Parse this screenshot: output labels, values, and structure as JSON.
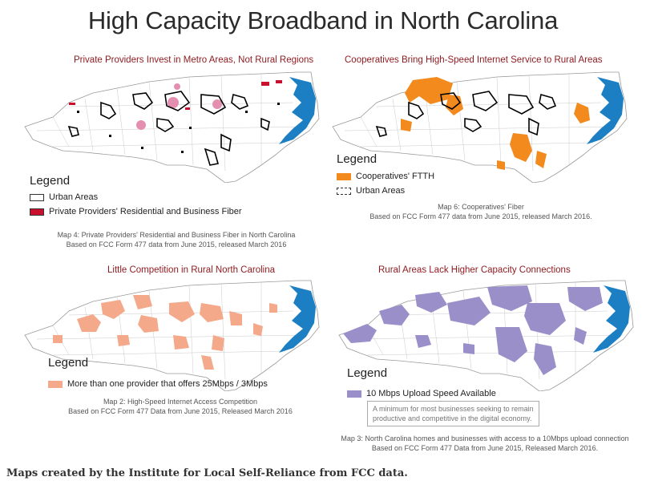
{
  "title": "High Capacity Broadband in North Carolina",
  "colors": {
    "coast": "#1d7fc3",
    "private_fiber": "#c8102e",
    "pink_area": "#e58fb0",
    "coop": "#f28a1e",
    "competition": "#f4a98a",
    "upload": "#9b8fc9",
    "title_red": "#8e1a1f"
  },
  "panels": {
    "p1": {
      "title": "Private Providers Invest in Metro Areas, Not Rural Regions",
      "legend_heading": "Legend",
      "legend_items": [
        "Urban Areas",
        "Private Providers' Residential and Business Fiber"
      ],
      "caption_line1": "Map 4: Private Providers' Residential and Business Fiber in North Carolina",
      "caption_line2": "Based on FCC Form 477 data from June 2015, released March 2016"
    },
    "p2": {
      "title": "Cooperatives Bring High-Speed Internet Service to Rural Areas",
      "legend_heading": "Legend",
      "legend_items": [
        "Cooperatives' FTTH",
        "Urban Areas"
      ],
      "caption_line1": "Map 6: Cooperatives' Fiber",
      "caption_line2": "Based on FCC Form 477 data from June 2015, released March 2016."
    },
    "p3": {
      "title": "Little Competition in Rural North Carolina",
      "legend_heading": "Legend",
      "legend_items": [
        "More than one provider that offers 25Mbps / 3Mbps"
      ],
      "caption_line1": "Map 2: High-Speed Internet Access Competition",
      "caption_line2": "Based on FCC Form 477 Data from June 2015, Released March 2016"
    },
    "p4": {
      "title": "Rural Areas Lack Higher Capacity Connections",
      "legend_heading": "Legend",
      "legend_items": [
        "10 Mbps Upload Speed Available"
      ],
      "note_line1": "A minimum for most businesses seeking to remain",
      "note_line2": "productive and competitive in the digital economy.",
      "caption_line1": "Map 3: North Carolina homes and businesses with access to a 10Mbps upload connection",
      "caption_line2": "Based on FCC Form 477 Data from June 2015, Released March 2016."
    }
  },
  "footer": "Maps created by the Institute for Local Self-Reliance from FCC data."
}
